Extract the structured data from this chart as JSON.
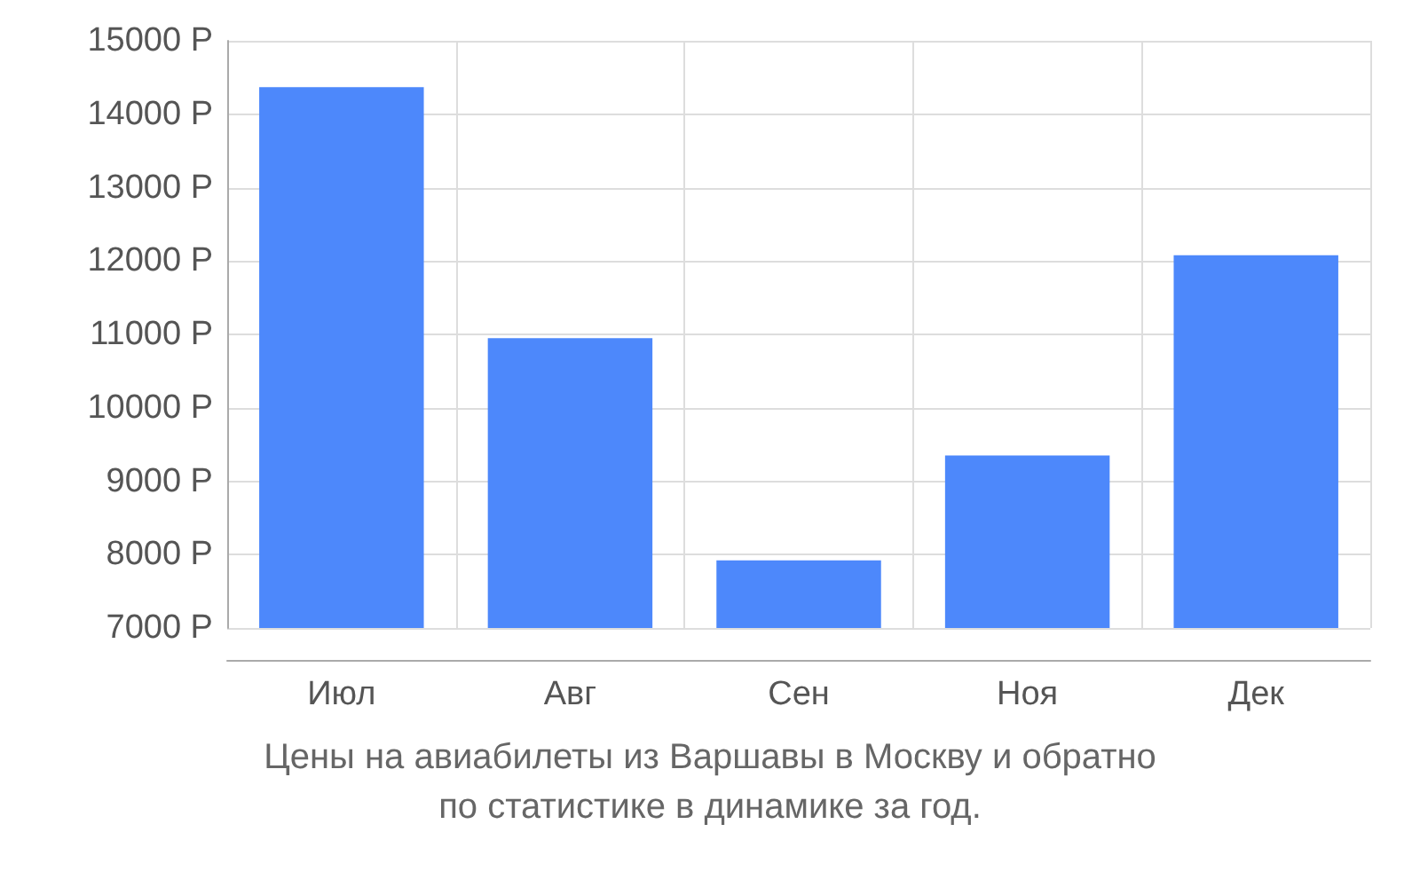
{
  "chart_data": {
    "type": "bar",
    "title": "Цены на авиабилеты из Варшавы в Москву и обратно\nпо статистике в динамике за год.",
    "categories": [
      "Июл",
      "Авг",
      "Сен",
      "Ноя",
      "Дек"
    ],
    "values": [
      14370,
      10950,
      7920,
      9350,
      12080
    ],
    "color": "#4d88fb",
    "ylim": [
      7000,
      15000
    ],
    "yticks": [
      {
        "value": 7000,
        "label": "7000 Р"
      },
      {
        "value": 8000,
        "label": "8000 Р"
      },
      {
        "value": 9000,
        "label": "9000 Р"
      },
      {
        "value": 10000,
        "label": "10000 Р"
      },
      {
        "value": 11000,
        "label": "11000 Р"
      },
      {
        "value": 12000,
        "label": "12000 Р"
      },
      {
        "value": 13000,
        "label": "13000 Р"
      },
      {
        "value": 14000,
        "label": "14000 Р"
      },
      {
        "value": 15000,
        "label": "15000 Р"
      }
    ],
    "grid": true
  }
}
